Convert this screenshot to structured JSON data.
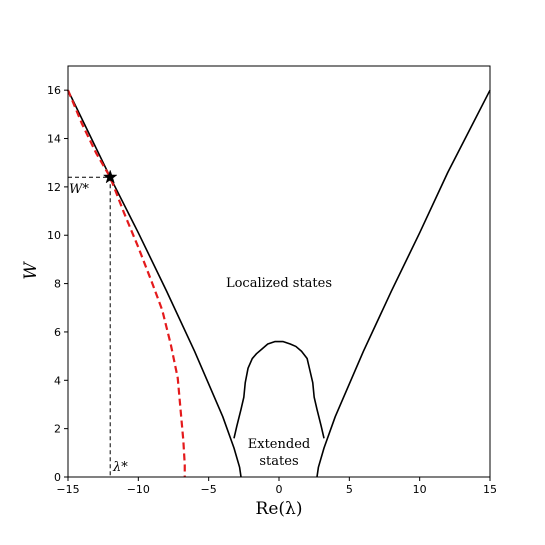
{
  "chart_data": {
    "type": "line",
    "title": "",
    "xlabel": "Re(λ)",
    "ylabel": "W",
    "xlim": [
      -15,
      15
    ],
    "ylim": [
      0,
      17
    ],
    "xticks": [
      -15,
      -10,
      -5,
      0,
      5,
      10,
      15
    ],
    "yticks": [
      0,
      2,
      4,
      6,
      8,
      10,
      12,
      14,
      16
    ],
    "grid": false,
    "legend": "none",
    "series": [
      {
        "style": "solid",
        "color": "#000000",
        "points": [
          [
            -15,
            16
          ],
          [
            -12.0,
            12.4
          ],
          [
            -10,
            10.1
          ],
          [
            -8,
            7.7
          ],
          [
            -6,
            5.2
          ],
          [
            -4,
            2.5
          ],
          [
            -3.2,
            1.2
          ],
          [
            -2.8,
            0.4
          ],
          [
            -2.7,
            0
          ]
        ]
      },
      {
        "style": "solid",
        "color": "#000000",
        "points": [
          [
            2.7,
            0
          ],
          [
            2.8,
            0.4
          ],
          [
            3.2,
            1.2
          ],
          [
            4,
            2.5
          ],
          [
            6,
            5.2
          ],
          [
            8,
            7.7
          ],
          [
            10,
            10.1
          ],
          [
            12,
            12.6
          ],
          [
            15,
            16
          ]
        ]
      },
      {
        "style": "solid",
        "color": "#000000",
        "points": [
          [
            -3.2,
            1.6
          ],
          [
            -3.0,
            2.1
          ],
          [
            -2.7,
            2.8
          ],
          [
            -2.5,
            3.3
          ],
          [
            -2.4,
            3.9
          ],
          [
            -2.2,
            4.5
          ],
          [
            -1.9,
            4.9
          ],
          [
            -1.6,
            5.1
          ],
          [
            -1.2,
            5.3
          ],
          [
            -0.8,
            5.5
          ],
          [
            -0.3,
            5.6
          ],
          [
            0.3,
            5.6
          ],
          [
            0.8,
            5.5
          ],
          [
            1.2,
            5.4
          ],
          [
            1.6,
            5.2
          ],
          [
            2.0,
            4.9
          ],
          [
            2.2,
            4.4
          ],
          [
            2.4,
            3.9
          ],
          [
            2.5,
            3.3
          ],
          [
            2.7,
            2.8
          ],
          [
            3.0,
            2.1
          ],
          [
            3.2,
            1.6
          ]
        ]
      },
      {
        "style": "dashed",
        "color": "#e41a1c",
        "points": [
          [
            -15,
            16
          ],
          [
            -14,
            14.6
          ],
          [
            -13,
            13.4
          ],
          [
            -12,
            12.4
          ],
          [
            -11,
            10.9
          ],
          [
            -10,
            9.5
          ],
          [
            -9,
            8.0
          ],
          [
            -8.3,
            6.9
          ],
          [
            -7.7,
            5.5
          ],
          [
            -7.2,
            4.1
          ],
          [
            -7.0,
            2.8
          ],
          [
            -6.8,
            1.5
          ],
          [
            -6.7,
            0.5
          ],
          [
            -6.7,
            0
          ]
        ]
      }
    ],
    "critical_point": {
      "x": -12,
      "y": 12.4
    },
    "annotations": {
      "localized": "Localized states",
      "extended_line1": "Extended",
      "extended_line2": "states",
      "w_star": "W*",
      "lambda_star": "λ*"
    }
  }
}
